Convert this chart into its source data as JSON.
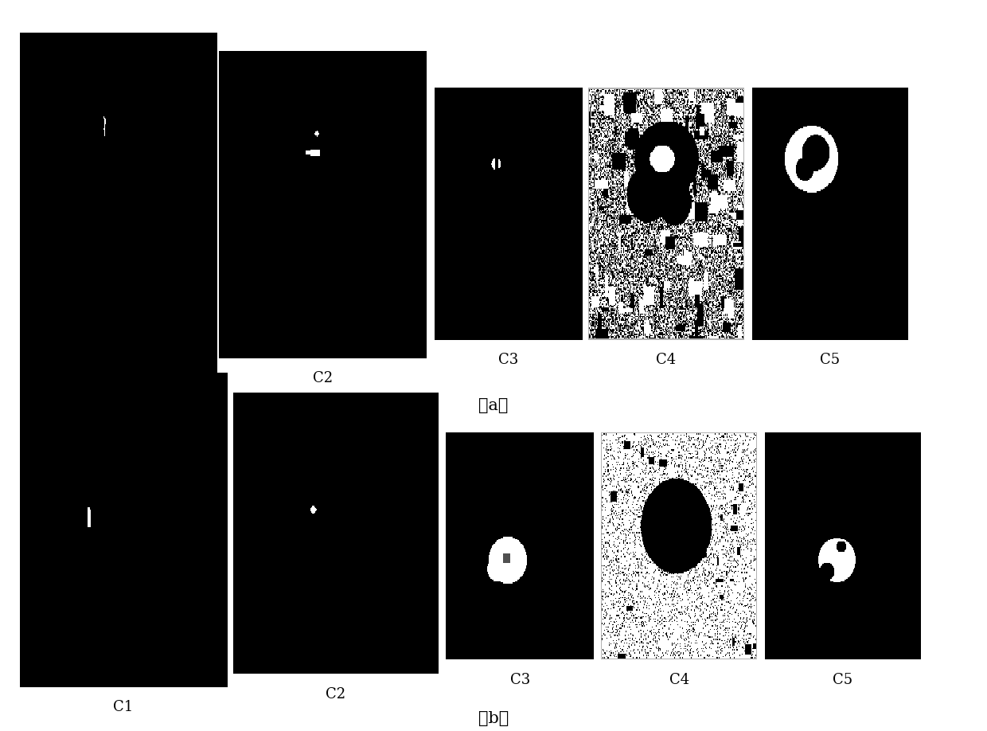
{
  "background_color": "#ffffff",
  "fig_width": 12.4,
  "fig_height": 9.18,
  "col_labels": [
    "C1",
    "C2",
    "C3",
    "C4",
    "C5"
  ],
  "label_fontsize": 13,
  "row_label_fontsize": 15
}
